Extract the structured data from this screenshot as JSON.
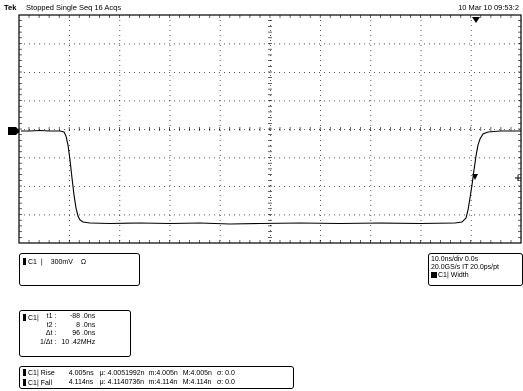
{
  "header": {
    "brand": "Tek",
    "status": "Stopped Single Seq 16 Acqs",
    "datetime": "10 Mar 10 09:53:2"
  },
  "channel_box": {
    "channel": "C1",
    "scale": "300mV",
    "impedance": "Ω"
  },
  "timebase_box": {
    "line1": "10.0ns/div 0.0s",
    "line2": "20.0GS/s IT 20.0ps/pt",
    "line3": "C1| Width"
  },
  "cursor_box": {
    "channel": "C1|",
    "rows": [
      {
        "label": "t1 :",
        "value": "-88 .0ns"
      },
      {
        "label": "t2 :",
        "value": "8 .0ns"
      },
      {
        "label": "Δt :",
        "value": "96 .0ns"
      },
      {
        "label": "1/Δt :",
        "value": "10 .42MHz"
      }
    ]
  },
  "measurements": [
    {
      "channel": "C1",
      "name": "Rise",
      "value": "4.005ns",
      "mean": "μ: 4.0051992n",
      "min": "m:4.005n",
      "max": "M:4.005n",
      "sigma": "σ: 0.0"
    },
    {
      "channel": "C1",
      "name": "Fall",
      "value": "4.114ns",
      "mean": "μ: 4.1140736n",
      "min": "m:4.114n",
      "max": "M:4.114n",
      "sigma": "σ: 0.0"
    }
  ],
  "colors": {
    "trace": "#000000",
    "grid": "#000000",
    "background": "#ffffff"
  },
  "icons": {
    "trigger_position": "trigger-marker-icon",
    "ground_level": "ground-marker-icon",
    "trigger_level": "trigger-level-icon"
  }
}
